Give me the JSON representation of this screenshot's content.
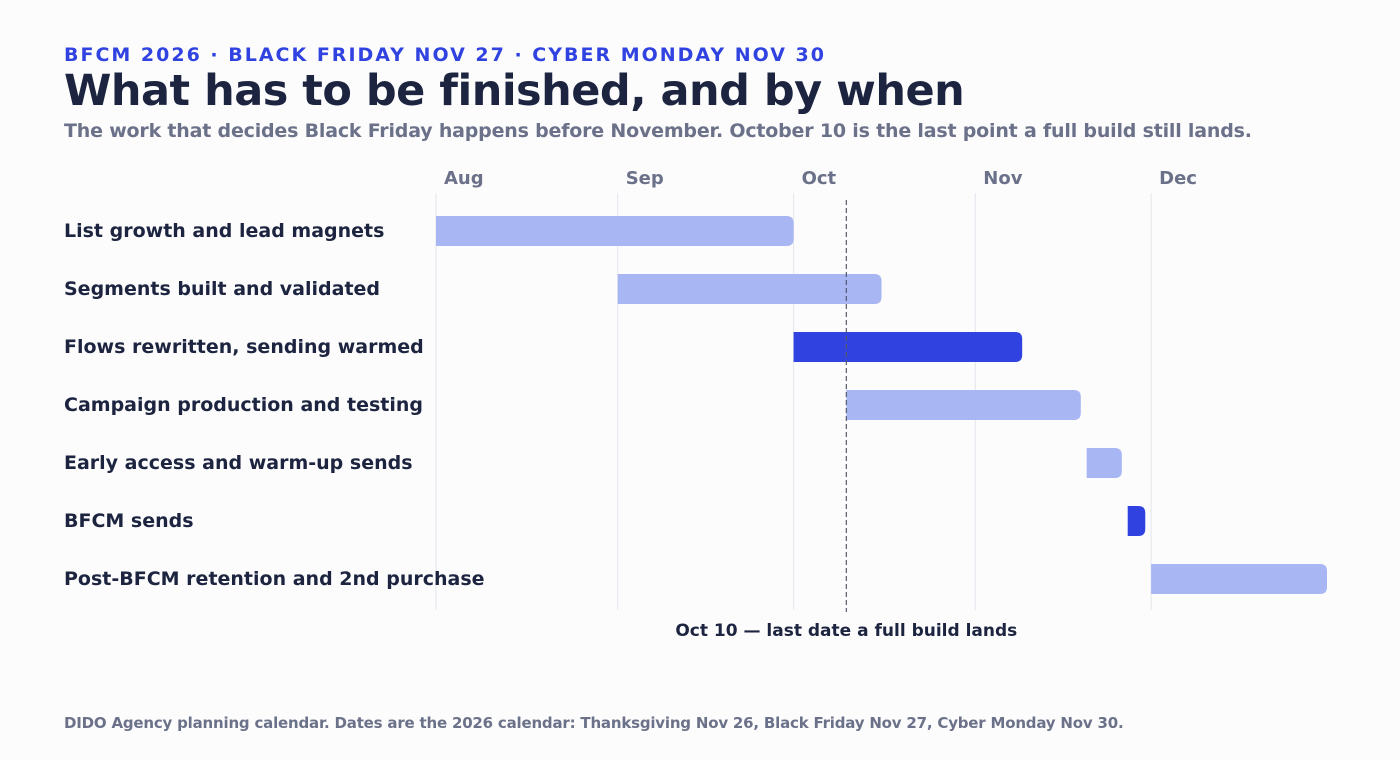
{
  "header": {
    "eyebrow": "BFCM 2026 · BLACK FRIDAY NOV 27 · CYBER MONDAY NOV 30",
    "title": "What has to be finished, and by when",
    "subtitle": "The work that decides Black Friday happens before November. October 10 is the last point a full build still lands."
  },
  "footer": {
    "note": "DIDO Agency planning calendar. Dates are the 2026 calendar: Thanksgiving Nov 26, Black Friday Nov 27, Cyber Monday Nov 30."
  },
  "colors": {
    "accent": "#3043e0",
    "bar_light": "#a8b6f4",
    "bar_dark": "#3043e0"
  },
  "chart_data": {
    "type": "gantt",
    "x_axis": {
      "type": "date",
      "range": [
        "2026-08-01",
        "2026-12-31"
      ],
      "months": [
        {
          "label": "Aug",
          "start": "2026-08-01"
        },
        {
          "label": "Sep",
          "start": "2026-09-01"
        },
        {
          "label": "Oct",
          "start": "2026-10-01"
        },
        {
          "label": "Nov",
          "start": "2026-11-01"
        },
        {
          "label": "Dec",
          "start": "2026-12-01"
        }
      ]
    },
    "tasks": [
      {
        "name": "List growth and lead magnets",
        "start": "2026-08-01",
        "end": "2026-10-01",
        "emphasis": false
      },
      {
        "name": "Segments built and validated",
        "start": "2026-09-01",
        "end": "2026-10-16",
        "emphasis": false
      },
      {
        "name": "Flows rewritten, sending warmed",
        "start": "2026-10-01",
        "end": "2026-11-09",
        "emphasis": true
      },
      {
        "name": "Campaign production and testing",
        "start": "2026-10-10",
        "end": "2026-11-19",
        "emphasis": false
      },
      {
        "name": "Early access and warm-up sends",
        "start": "2026-11-20",
        "end": "2026-11-26",
        "emphasis": false
      },
      {
        "name": "BFCM sends",
        "start": "2026-11-27",
        "end": "2026-11-30",
        "emphasis": true
      },
      {
        "name": "Post-BFCM retention and 2nd purchase",
        "start": "2026-12-01",
        "end": "2026-12-31",
        "emphasis": false
      }
    ],
    "marker": {
      "date": "2026-10-10",
      "label": "Oct 10 — last date a full build lands"
    },
    "grid": true,
    "legend": "none"
  }
}
